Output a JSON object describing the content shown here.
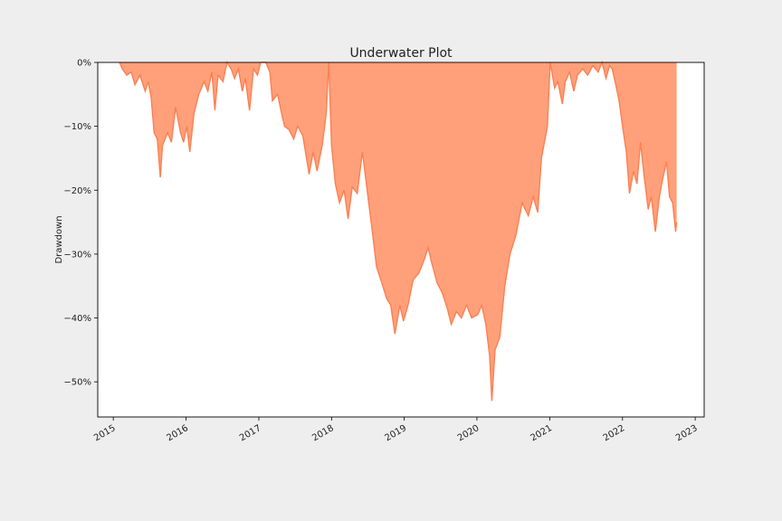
{
  "chart_data": {
    "type": "area",
    "title": "Underwater Plot",
    "xlabel": "",
    "ylabel": "Drawdown",
    "xlim": [
      "2014-10-15",
      "2023-02-15"
    ],
    "ylim": [
      -55.5,
      0
    ],
    "y_unit": "%",
    "x_ticks": [
      "2015",
      "2016",
      "2017",
      "2018",
      "2019",
      "2020",
      "2021",
      "2022",
      "2023"
    ],
    "y_ticks": [
      0,
      -10,
      -20,
      -30,
      -40,
      -50
    ],
    "y_tick_labels": [
      "0%",
      "−10%",
      "−20%",
      "−30%",
      "−40%",
      "−50%"
    ],
    "grid": false,
    "colors": {
      "fill": "#ffa07a",
      "line": "#ff7f50",
      "background": "#eeeeee",
      "plot_area": "#ffffff"
    },
    "series": [
      {
        "points": [
          [
            "2015-02-01",
            0
          ],
          [
            "2015-02-15",
            -1
          ],
          [
            "2015-03-10",
            -2
          ],
          [
            "2015-04-01",
            -1.5
          ],
          [
            "2015-04-20",
            -3.5
          ],
          [
            "2015-05-15",
            -2
          ],
          [
            "2015-06-10",
            -4.5
          ],
          [
            "2015-06-25",
            -3
          ],
          [
            "2015-07-10",
            -5.5
          ],
          [
            "2015-07-25",
            -11
          ],
          [
            "2015-08-10",
            -12
          ],
          [
            "2015-08-25",
            -18
          ],
          [
            "2015-09-05",
            -13
          ],
          [
            "2015-10-01",
            -11
          ],
          [
            "2015-10-20",
            -12.5
          ],
          [
            "2015-11-10",
            -7
          ],
          [
            "2015-12-05",
            -11
          ],
          [
            "2015-12-20",
            -12.5
          ],
          [
            "2016-01-05",
            -10
          ],
          [
            "2016-01-20",
            -14
          ],
          [
            "2016-02-10",
            -8
          ],
          [
            "2016-03-05",
            -5
          ],
          [
            "2016-04-01",
            -3
          ],
          [
            "2016-04-20",
            -4.5
          ],
          [
            "2016-05-10",
            -1.5
          ],
          [
            "2016-05-25",
            -7.5
          ],
          [
            "2016-06-10",
            -2
          ],
          [
            "2016-07-05",
            -3
          ],
          [
            "2016-07-25",
            0
          ],
          [
            "2016-08-15",
            -1
          ],
          [
            "2016-09-01",
            -2.5
          ],
          [
            "2016-09-20",
            -1
          ],
          [
            "2016-10-10",
            -4.5
          ],
          [
            "2016-10-25",
            -2.5
          ],
          [
            "2016-11-15",
            -7.5
          ],
          [
            "2016-12-05",
            -1
          ],
          [
            "2016-12-25",
            -2
          ],
          [
            "2017-01-10",
            0
          ],
          [
            "2017-02-05",
            0
          ],
          [
            "2017-02-25",
            -1.5
          ],
          [
            "2017-03-10",
            -6
          ],
          [
            "2017-04-05",
            -5
          ],
          [
            "2017-04-25",
            -8
          ],
          [
            "2017-05-10",
            -10
          ],
          [
            "2017-06-01",
            -10.5
          ],
          [
            "2017-06-25",
            -12
          ],
          [
            "2017-07-15",
            -10
          ],
          [
            "2017-08-10",
            -11.5
          ],
          [
            "2017-09-10",
            -17.5
          ],
          [
            "2017-10-01",
            -14
          ],
          [
            "2017-10-20",
            -17
          ],
          [
            "2017-11-15",
            -13
          ],
          [
            "2017-12-05",
            -8
          ],
          [
            "2017-12-18",
            0
          ],
          [
            "2018-01-01",
            -13
          ],
          [
            "2018-01-20",
            -19
          ],
          [
            "2018-02-10",
            -22
          ],
          [
            "2018-03-05",
            -20
          ],
          [
            "2018-03-25",
            -24.5
          ],
          [
            "2018-04-15",
            -19.5
          ],
          [
            "2018-05-10",
            -20.5
          ],
          [
            "2018-06-05",
            -14
          ],
          [
            "2018-07-01",
            -20.5
          ],
          [
            "2018-07-25",
            -26.5
          ],
          [
            "2018-08-15",
            -32
          ],
          [
            "2018-09-10",
            -34.5
          ],
          [
            "2018-10-05",
            -37
          ],
          [
            "2018-10-25",
            -38
          ],
          [
            "2018-11-15",
            -42.5
          ],
          [
            "2018-12-10",
            -38
          ],
          [
            "2018-12-28",
            -40.5
          ],
          [
            "2019-01-20",
            -38
          ],
          [
            "2019-02-15",
            -34
          ],
          [
            "2019-03-15",
            -33
          ],
          [
            "2019-04-10",
            -31
          ],
          [
            "2019-05-01",
            -29
          ],
          [
            "2019-05-20",
            -31.5
          ],
          [
            "2019-06-15",
            -34.5
          ],
          [
            "2019-07-10",
            -36
          ],
          [
            "2019-08-05",
            -38.5
          ],
          [
            "2019-08-25",
            -41
          ],
          [
            "2019-09-20",
            -39
          ],
          [
            "2019-10-15",
            -40
          ],
          [
            "2019-11-10",
            -38
          ],
          [
            "2019-12-05",
            -40
          ],
          [
            "2020-01-05",
            -39.5
          ],
          [
            "2020-01-25",
            -38
          ],
          [
            "2020-02-15",
            -41
          ],
          [
            "2020-03-05",
            -46
          ],
          [
            "2020-03-16",
            -53
          ],
          [
            "2020-04-01",
            -45
          ],
          [
            "2020-04-25",
            -43
          ],
          [
            "2020-05-20",
            -35
          ],
          [
            "2020-06-15",
            -30
          ],
          [
            "2020-07-15",
            -27
          ],
          [
            "2020-08-15",
            -22
          ],
          [
            "2020-09-15",
            -24
          ],
          [
            "2020-10-10",
            -21
          ],
          [
            "2020-11-01",
            -23.5
          ],
          [
            "2020-11-20",
            -15
          ],
          [
            "2020-12-20",
            -10
          ],
          [
            "2021-01-03",
            0
          ],
          [
            "2021-01-25",
            -4
          ],
          [
            "2021-02-10",
            -3
          ],
          [
            "2021-03-05",
            -6.5
          ],
          [
            "2021-03-20",
            -3
          ],
          [
            "2021-04-10",
            -1.5
          ],
          [
            "2021-05-01",
            -4.5
          ],
          [
            "2021-05-20",
            -2
          ],
          [
            "2021-06-15",
            -1
          ],
          [
            "2021-07-10",
            -2
          ],
          [
            "2021-08-05",
            -0.5
          ],
          [
            "2021-09-01",
            -1.5
          ],
          [
            "2021-09-20",
            0
          ],
          [
            "2021-10-10",
            -2.5
          ],
          [
            "2021-10-28",
            -0.5
          ],
          [
            "2021-11-10",
            -1
          ],
          [
            "2021-11-25",
            -3
          ],
          [
            "2021-12-15",
            -6
          ],
          [
            "2022-01-01",
            -10
          ],
          [
            "2022-01-20",
            -14
          ],
          [
            "2022-02-05",
            -20.5
          ],
          [
            "2022-02-25",
            -17
          ],
          [
            "2022-03-15",
            -19
          ],
          [
            "2022-04-01",
            -12.5
          ],
          [
            "2022-04-20",
            -18
          ],
          [
            "2022-05-10",
            -23
          ],
          [
            "2022-05-25",
            -21
          ],
          [
            "2022-06-15",
            -26.5
          ],
          [
            "2022-07-05",
            -21
          ],
          [
            "2022-07-20",
            -18.5
          ],
          [
            "2022-08-10",
            -15.5
          ],
          [
            "2022-08-25",
            -21
          ],
          [
            "2022-09-10",
            -22
          ],
          [
            "2022-09-25",
            -26.5
          ],
          [
            "2022-09-30",
            -25
          ]
        ]
      }
    ]
  }
}
